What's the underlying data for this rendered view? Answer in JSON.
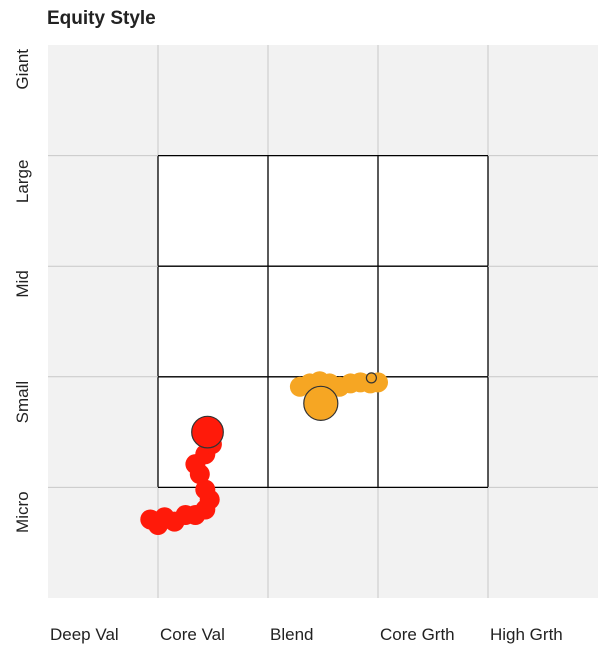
{
  "chart_data": {
    "type": "scatter",
    "title": "Equity Style",
    "x_labels": [
      "Deep Val",
      "Core Val",
      "Blend",
      "Core Grth",
      "High Grth"
    ],
    "y_labels": [
      "Giant",
      "Large",
      "Mid",
      "Small",
      "Micro"
    ],
    "xlim": [
      0,
      5
    ],
    "ylim": [
      0,
      5
    ],
    "xticks": [
      1,
      2,
      3,
      4
    ],
    "yticks": [
      1,
      2,
      3,
      4
    ],
    "grid": true,
    "series": [
      {
        "color": "#ff1a0a",
        "x": [
          0.93,
          1.0,
          1.06,
          1.15,
          1.25,
          1.34,
          1.43,
          1.47,
          1.43,
          1.38,
          1.34,
          1.43,
          1.49,
          1.45
        ],
        "values": [
          0.71,
          0.66,
          0.73,
          0.69,
          0.75,
          0.75,
          0.8,
          0.89,
          0.98,
          1.12,
          1.21,
          1.3,
          1.39,
          1.5
        ],
        "sizes": [
          1,
          1,
          1,
          1,
          1,
          1,
          1,
          1,
          1,
          1,
          1,
          1,
          1,
          2.5
        ]
      },
      {
        "color": "#f6a623",
        "x": [
          2.29,
          2.38,
          2.47,
          2.56,
          2.65,
          2.75,
          2.84,
          2.93,
          3.0,
          2.48,
          2.94
        ],
        "values": [
          1.91,
          1.94,
          1.96,
          1.94,
          1.91,
          1.94,
          1.95,
          1.94,
          1.95,
          1.76,
          1.99
        ],
        "sizes": [
          1,
          1,
          1,
          1,
          1,
          1,
          1,
          1,
          1,
          2.9,
          0.25
        ]
      }
    ]
  }
}
